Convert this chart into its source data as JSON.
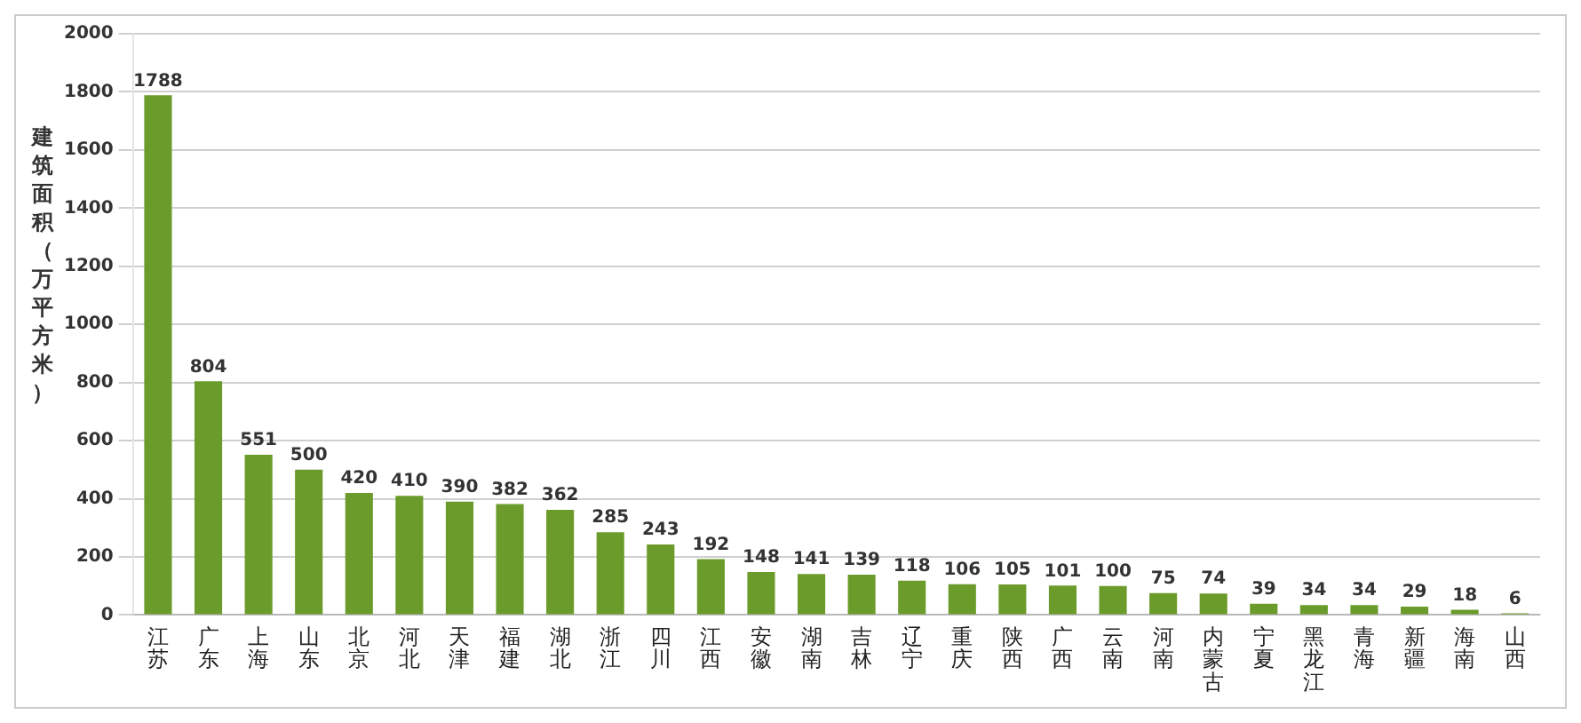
{
  "chart_data": {
    "type": "bar",
    "ylabel": "建筑面积（万平方米）",
    "categories": [
      "江苏",
      "广东",
      "上海",
      "山东",
      "北京",
      "河北",
      "天津",
      "福建",
      "湖北",
      "浙江",
      "四川",
      "江西",
      "安徽",
      "湖南",
      "吉林",
      "辽宁",
      "重庆",
      "陕西",
      "广西",
      "云南",
      "河南",
      "内蒙古",
      "宁夏",
      "黑龙江",
      "青海",
      "新疆",
      "海南",
      "山西"
    ],
    "values": [
      1788,
      804,
      551,
      500,
      420,
      410,
      390,
      382,
      362,
      285,
      243,
      192,
      148,
      141,
      139,
      118,
      106,
      105,
      101,
      100,
      75,
      74,
      39,
      34,
      34,
      29,
      18,
      6
    ],
    "color": "#6b9b2a",
    "ylim": [
      0,
      2000
    ],
    "yticks": [
      0,
      200,
      400,
      600,
      800,
      1000,
      1200,
      1400,
      1600,
      1800,
      2000
    ],
    "grid": "y",
    "data_labels": true
  }
}
